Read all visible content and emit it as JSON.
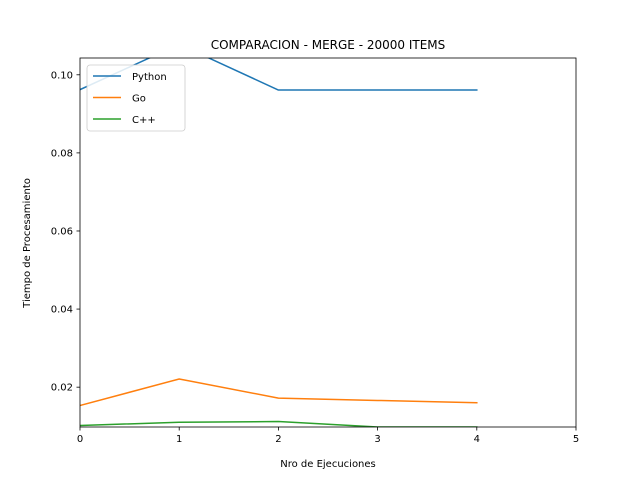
{
  "chart_data": {
    "type": "line",
    "title": "COMPARACION - MERGE - 20000 ITEMS",
    "xlabel": "Nro de Ejecuciones",
    "ylabel": "Tiempo de Procesamiento",
    "xlim": [
      0,
      5
    ],
    "ylim": [
      0.0098,
      0.1043
    ],
    "x_ticks": [
      "0",
      "1",
      "2",
      "3",
      "4",
      "5"
    ],
    "y_ticks": [
      "0.02",
      "0.04",
      "0.06",
      "0.08",
      "0.10"
    ],
    "grid": false,
    "legend_position": "top-left",
    "x": [
      0,
      1,
      2,
      3,
      4
    ],
    "series": [
      {
        "name": "Python",
        "color": "#1f77b4",
        "values": [
          0.0962,
          0.1078,
          0.0961,
          0.0961,
          0.0961
        ]
      },
      {
        "name": "Go",
        "color": "#ff7f0e",
        "values": [
          0.0153,
          0.0221,
          0.0172,
          0.0166,
          0.016
        ]
      },
      {
        "name": "C++",
        "color": "#2ca02c",
        "values": [
          0.0102,
          0.011,
          0.0112,
          0.0098,
          0.0098
        ]
      }
    ]
  }
}
